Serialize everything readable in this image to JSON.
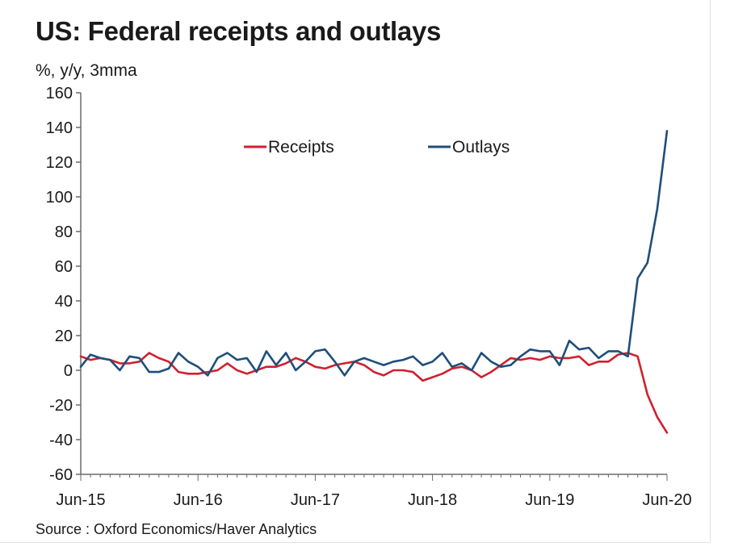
{
  "title": "US: Federal receipts and outlays",
  "unit": "%, y/y, 3mma",
  "source": "Source : Oxford Economics/Haver Analytics",
  "chart_data": {
    "type": "line",
    "ylim": [
      -60,
      160
    ],
    "yticks": [
      160,
      140,
      120,
      100,
      80,
      60,
      40,
      20,
      0,
      -20,
      -40,
      -60
    ],
    "xticks": [
      "Jun-15",
      "Jun-16",
      "Jun-17",
      "Jun-18",
      "Jun-19",
      "Jun-20"
    ],
    "x": [
      "Jun-15",
      "Jul-15",
      "Aug-15",
      "Sep-15",
      "Oct-15",
      "Nov-15",
      "Dec-15",
      "Jan-16",
      "Feb-16",
      "Mar-16",
      "Apr-16",
      "May-16",
      "Jun-16",
      "Jul-16",
      "Aug-16",
      "Sep-16",
      "Oct-16",
      "Nov-16",
      "Dec-16",
      "Jan-17",
      "Feb-17",
      "Mar-17",
      "Apr-17",
      "May-17",
      "Jun-17",
      "Jul-17",
      "Aug-17",
      "Sep-17",
      "Oct-17",
      "Nov-17",
      "Dec-17",
      "Jan-18",
      "Feb-18",
      "Mar-18",
      "Apr-18",
      "May-18",
      "Jun-18",
      "Jul-18",
      "Aug-18",
      "Sep-18",
      "Oct-18",
      "Nov-18",
      "Dec-18",
      "Jan-19",
      "Feb-19",
      "Mar-19",
      "Apr-19",
      "May-19",
      "Jun-19",
      "Jul-19",
      "Aug-19",
      "Sep-19",
      "Oct-19",
      "Nov-19",
      "Dec-19",
      "Jan-20",
      "Feb-20",
      "Mar-20",
      "Apr-20",
      "May-20",
      "Jun-20"
    ],
    "legend_position": "top-center",
    "grid": false,
    "series": [
      {
        "name": "Receipts",
        "color": "#d0202e",
        "values": [
          8,
          6,
          7,
          6,
          4,
          4,
          5,
          10,
          7,
          5,
          -1,
          -2,
          -2,
          -1,
          0,
          4,
          0,
          -2,
          0,
          2,
          2,
          4,
          7,
          5,
          2,
          1,
          3,
          4,
          5,
          3,
          -1,
          -3,
          0,
          0,
          -1,
          -6,
          -4,
          -2,
          1,
          2,
          0,
          -4,
          -1,
          3,
          7,
          6,
          7,
          6,
          8,
          7,
          7,
          8,
          3,
          5,
          5,
          9,
          10,
          8,
          -14,
          -27,
          -36
        ]
      },
      {
        "name": "Outlays",
        "color": "#1f4e79",
        "values": [
          2,
          9,
          7,
          6,
          0,
          8,
          7,
          -1,
          -1,
          1,
          10,
          5,
          2,
          -3,
          7,
          10,
          6,
          7,
          -1,
          11,
          3,
          10,
          0,
          5,
          11,
          12,
          5,
          -3,
          5,
          7,
          5,
          3,
          5,
          6,
          8,
          3,
          5,
          10,
          2,
          4,
          0,
          10,
          5,
          2,
          3,
          8,
          12,
          11,
          11,
          3,
          17,
          12,
          13,
          7,
          11,
          11,
          8,
          53,
          62,
          93,
          138
        ]
      }
    ]
  }
}
